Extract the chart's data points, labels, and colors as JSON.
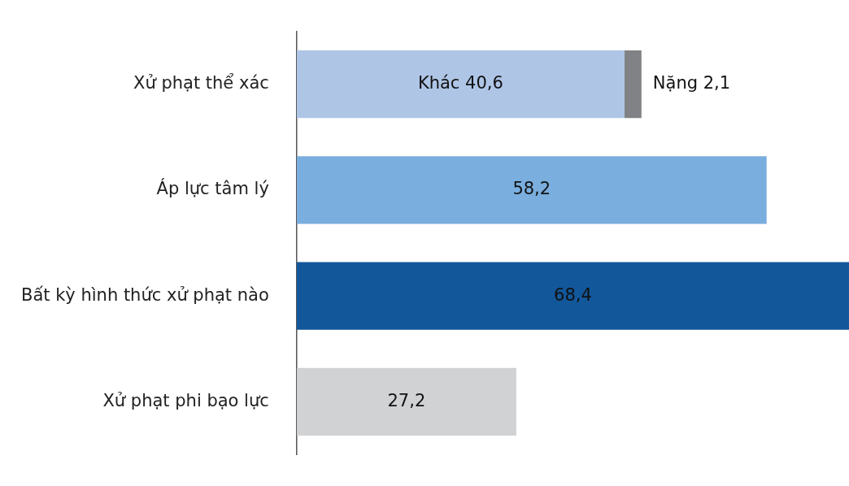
{
  "chart_data": {
    "type": "bar",
    "orientation": "horizontal",
    "stacked": true,
    "categories": [
      "Xử phạt thể xác",
      "Áp lực tâm lý",
      "Bất kỳ hình thức xử phạt nào",
      "Xử phạt phi bạo lực"
    ],
    "series": [
      {
        "colors": [
          "#aec5e6",
          "#7aaede",
          "#13579b",
          "#d1d2d4"
        ],
        "values": [
          40.6,
          58.2,
          68.4,
          27.2
        ],
        "value_labels": [
          "Khác 40,6",
          "58,2",
          "68,4",
          "27,2"
        ]
      },
      {
        "color": "#808285",
        "values": [
          2.1,
          null,
          null,
          null
        ],
        "value_labels": [
          "Nặng 2,1",
          null,
          null,
          null
        ]
      }
    ]
  }
}
